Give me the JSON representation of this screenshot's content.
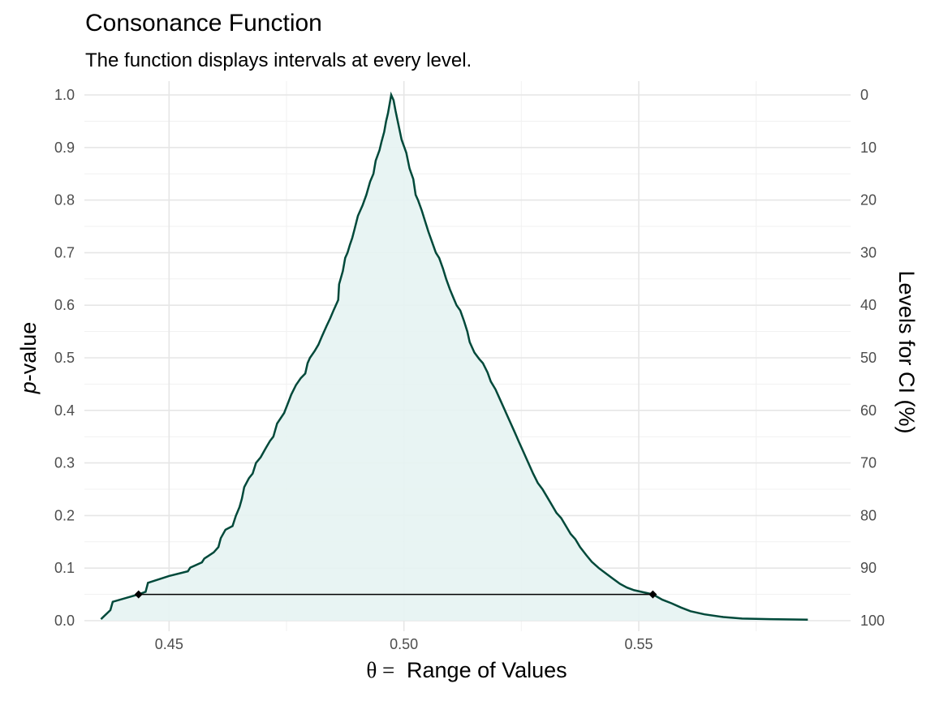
{
  "chart_data": {
    "type": "area",
    "title": "Consonance Function",
    "subtitle": "The function displays intervals at every level.",
    "xlabel_symbol": "θ = ",
    "xlabel": "Range of Values",
    "ylabel_italic": "p",
    "ylabel": "-value",
    "y2label": "Levels for CI (%)",
    "xlim": [
      0.4375,
      0.5875
    ],
    "ylim": [
      0,
      1
    ],
    "x_ticks": [
      {
        "value": 0.45,
        "label": "0.45"
      },
      {
        "value": 0.5,
        "label": "0.50"
      },
      {
        "value": 0.55,
        "label": "0.55"
      }
    ],
    "y_ticks": [
      {
        "value": 0.0,
        "label": "0.0"
      },
      {
        "value": 0.1,
        "label": "0.1"
      },
      {
        "value": 0.2,
        "label": "0.2"
      },
      {
        "value": 0.3,
        "label": "0.3"
      },
      {
        "value": 0.4,
        "label": "0.4"
      },
      {
        "value": 0.5,
        "label": "0.5"
      },
      {
        "value": 0.6,
        "label": "0.6"
      },
      {
        "value": 0.7,
        "label": "0.7"
      },
      {
        "value": 0.8,
        "label": "0.8"
      },
      {
        "value": 0.9,
        "label": "0.9"
      },
      {
        "value": 1.0,
        "label": "1.0"
      }
    ],
    "y2_ticks": [
      {
        "value": 1.0,
        "label": "0"
      },
      {
        "value": 0.9,
        "label": "10"
      },
      {
        "value": 0.8,
        "label": "20"
      },
      {
        "value": 0.7,
        "label": "30"
      },
      {
        "value": 0.6,
        "label": "40"
      },
      {
        "value": 0.5,
        "label": "50"
      },
      {
        "value": 0.4,
        "label": "60"
      },
      {
        "value": 0.3,
        "label": "70"
      },
      {
        "value": 0.2,
        "label": "80"
      },
      {
        "value": 0.1,
        "label": "90"
      },
      {
        "value": 0.0,
        "label": "100"
      }
    ],
    "grid": true,
    "line_color": "#00493a",
    "fill_color": "#e6f3f2",
    "curve": [
      [
        0.4355,
        0.003
      ],
      [
        0.4375,
        0.02
      ],
      [
        0.438,
        0.036
      ],
      [
        0.4435,
        0.05
      ],
      [
        0.445,
        0.055
      ],
      [
        0.4455,
        0.072
      ],
      [
        0.45,
        0.085
      ],
      [
        0.454,
        0.094
      ],
      [
        0.4545,
        0.101
      ],
      [
        0.457,
        0.111
      ],
      [
        0.4575,
        0.118
      ],
      [
        0.4595,
        0.13
      ],
      [
        0.4605,
        0.14
      ],
      [
        0.461,
        0.157
      ],
      [
        0.462,
        0.173
      ],
      [
        0.4635,
        0.18
      ],
      [
        0.4642,
        0.199
      ],
      [
        0.465,
        0.216
      ],
      [
        0.4655,
        0.232
      ],
      [
        0.466,
        0.254
      ],
      [
        0.467,
        0.271
      ],
      [
        0.4678,
        0.28
      ],
      [
        0.4685,
        0.3
      ],
      [
        0.4695,
        0.311
      ],
      [
        0.4705,
        0.327
      ],
      [
        0.4715,
        0.342
      ],
      [
        0.4722,
        0.35
      ],
      [
        0.473,
        0.375
      ],
      [
        0.4745,
        0.395
      ],
      [
        0.4755,
        0.418
      ],
      [
        0.476,
        0.43
      ],
      [
        0.477,
        0.448
      ],
      [
        0.478,
        0.461
      ],
      [
        0.479,
        0.47
      ],
      [
        0.4795,
        0.49
      ],
      [
        0.48,
        0.5
      ],
      [
        0.481,
        0.513
      ],
      [
        0.4818,
        0.525
      ],
      [
        0.4825,
        0.54
      ],
      [
        0.4835,
        0.56
      ],
      [
        0.4843,
        0.575
      ],
      [
        0.485,
        0.59
      ],
      [
        0.4855,
        0.6
      ],
      [
        0.486,
        0.61
      ],
      [
        0.4862,
        0.64
      ],
      [
        0.487,
        0.665
      ],
      [
        0.4875,
        0.69
      ],
      [
        0.488,
        0.7
      ],
      [
        0.4885,
        0.715
      ],
      [
        0.489,
        0.728
      ],
      [
        0.4895,
        0.745
      ],
      [
        0.4902,
        0.77
      ],
      [
        0.4912,
        0.79
      ],
      [
        0.492,
        0.81
      ],
      [
        0.4928,
        0.835
      ],
      [
        0.4935,
        0.85
      ],
      [
        0.494,
        0.875
      ],
      [
        0.4948,
        0.895
      ],
      [
        0.4952,
        0.91
      ],
      [
        0.4958,
        0.93
      ],
      [
        0.4962,
        0.95
      ],
      [
        0.4966,
        0.965
      ],
      [
        0.497,
        0.985
      ],
      [
        0.4973,
        1.0
      ],
      [
        0.4978,
        0.99
      ],
      [
        0.4982,
        0.97
      ],
      [
        0.4988,
        0.945
      ],
      [
        0.4995,
        0.915
      ],
      [
        0.5005,
        0.89
      ],
      [
        0.5012,
        0.86
      ],
      [
        0.502,
        0.84
      ],
      [
        0.5025,
        0.81
      ],
      [
        0.503,
        0.8
      ],
      [
        0.5038,
        0.78
      ],
      [
        0.5045,
        0.76
      ],
      [
        0.5052,
        0.74
      ],
      [
        0.506,
        0.72
      ],
      [
        0.5068,
        0.7
      ],
      [
        0.5075,
        0.69
      ],
      [
        0.5083,
        0.67
      ],
      [
        0.509,
        0.65
      ],
      [
        0.5098,
        0.63
      ],
      [
        0.5105,
        0.615
      ],
      [
        0.5112,
        0.6
      ],
      [
        0.512,
        0.59
      ],
      [
        0.5128,
        0.57
      ],
      [
        0.5135,
        0.55
      ],
      [
        0.514,
        0.53
      ],
      [
        0.515,
        0.51
      ],
      [
        0.516,
        0.498
      ],
      [
        0.5168,
        0.49
      ],
      [
        0.5178,
        0.472
      ],
      [
        0.5185,
        0.455
      ],
      [
        0.5195,
        0.44
      ],
      [
        0.5205,
        0.42
      ],
      [
        0.5215,
        0.4
      ],
      [
        0.5225,
        0.38
      ],
      [
        0.5235,
        0.36
      ],
      [
        0.5245,
        0.34
      ],
      [
        0.5255,
        0.32
      ],
      [
        0.5265,
        0.3
      ],
      [
        0.5275,
        0.28
      ],
      [
        0.5285,
        0.262
      ],
      [
        0.5295,
        0.25
      ],
      [
        0.5305,
        0.235
      ],
      [
        0.5315,
        0.22
      ],
      [
        0.5325,
        0.205
      ],
      [
        0.5335,
        0.195
      ],
      [
        0.5345,
        0.18
      ],
      [
        0.5355,
        0.165
      ],
      [
        0.5365,
        0.155
      ],
      [
        0.5375,
        0.14
      ],
      [
        0.5388,
        0.125
      ],
      [
        0.54,
        0.112
      ],
      [
        0.5415,
        0.1
      ],
      [
        0.543,
        0.09
      ],
      [
        0.5445,
        0.08
      ],
      [
        0.546,
        0.07
      ],
      [
        0.5475,
        0.063
      ],
      [
        0.549,
        0.058
      ],
      [
        0.551,
        0.054
      ],
      [
        0.553,
        0.05
      ],
      [
        0.555,
        0.04
      ],
      [
        0.557,
        0.033
      ],
      [
        0.559,
        0.025
      ],
      [
        0.561,
        0.018
      ],
      [
        0.564,
        0.012
      ],
      [
        0.568,
        0.007
      ],
      [
        0.572,
        0.004
      ],
      [
        0.578,
        0.003
      ],
      [
        0.586,
        0.002
      ]
    ],
    "interval": {
      "lower": 0.4435,
      "upper": 0.553,
      "p": 0.05
    }
  }
}
